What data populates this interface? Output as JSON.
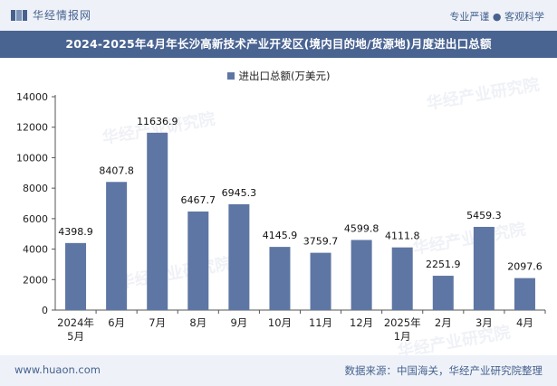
{
  "header": {
    "brand": "华经情报网",
    "tagline": "专业严谨 ● 客观科学"
  },
  "title": "2024-2025年4月年长沙高新技术产业开发区(境内目的地/货源地)月度进出口总额",
  "footer": {
    "url": "www.huaon.com",
    "source": "数据来源：中国海关，华经产业研究院整理"
  },
  "watermark": "华经产业研究院",
  "colors": {
    "bar": "#5e76a3",
    "header_bg": "#eef2f8",
    "title_bg": "#4a6492"
  },
  "chart_data": {
    "type": "bar",
    "categories": [
      "2024年5月",
      "6月",
      "7月",
      "8月",
      "9月",
      "10月",
      "11月",
      "12月",
      "2025年1月",
      "2月",
      "3月",
      "4月"
    ],
    "series": [
      {
        "name": "进出口总额(万美元)",
        "values": [
          4398.9,
          8407.8,
          11636.9,
          6467.7,
          6945.3,
          4145.9,
          3759.7,
          4599.8,
          4111.8,
          2251.9,
          5459.3,
          2097.6
        ]
      }
    ],
    "yticks": [
      0,
      2000,
      4000,
      6000,
      8000,
      10000,
      12000,
      14000
    ],
    "ylim": [
      0,
      14000
    ],
    "legend_position": "top-center",
    "grid": false
  }
}
